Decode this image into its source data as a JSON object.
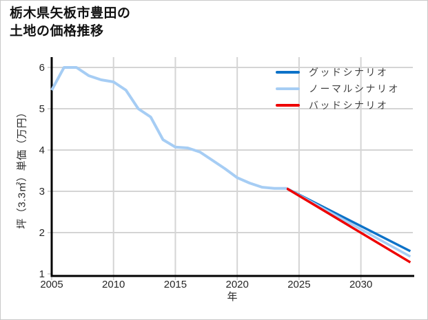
{
  "header": {
    "title_line1": "栃木県矢板市豊田の",
    "title_line2": "土地の価格推移"
  },
  "colors": {
    "good_scenario": "#0d72c8",
    "normal_scenario": "#a6cdf4",
    "bad_scenario": "#ee0000",
    "history_line": "#a6cdf4",
    "gridline": "#d4d4d4",
    "axis": "#000000",
    "tick_mark": "#c9c9c9",
    "tick_label": "#262626"
  },
  "chart_data": {
    "type": "line",
    "title": "栃木県矢板市豊田の土地の価格推移",
    "xlabel": "年",
    "ylabel": "坪（3.3㎡）単価（万円）",
    "x_ticks": [
      2005,
      2010,
      2015,
      2020,
      2025,
      2030
    ],
    "y_ticks": [
      1,
      2,
      3,
      4,
      5,
      6
    ],
    "xlim": [
      2005,
      2034.2
    ],
    "ylim": [
      0.95,
      6.25
    ],
    "grid": true,
    "legend_position": "top-right",
    "series": [
      {
        "name": "good-scenario",
        "label": "グッドシナリオ",
        "color": "#0d72c8",
        "years": [
          2024,
          2034
        ],
        "values": [
          3.07,
          1.55
        ]
      },
      {
        "name": "normal-scenario",
        "label": "ノーマルシナリオ",
        "color": "#a6cdf4",
        "years": [
          2024,
          2034
        ],
        "values": [
          3.07,
          1.42
        ]
      },
      {
        "name": "bad-scenario",
        "label": "バッドシナリオ",
        "color": "#ee0000",
        "years": [
          2024,
          2034
        ],
        "values": [
          3.07,
          1.28
        ]
      },
      {
        "name": "price-history",
        "label": null,
        "color": "#a6cdf4",
        "years": [
          2005,
          2006,
          2007,
          2008,
          2009,
          2010,
          2011,
          2012,
          2013,
          2014,
          2015,
          2016,
          2017,
          2018,
          2019,
          2020,
          2021,
          2022,
          2023,
          2024
        ],
        "values": [
          5.45,
          6.0,
          6.0,
          5.8,
          5.7,
          5.65,
          5.45,
          5.0,
          4.8,
          4.25,
          4.07,
          4.05,
          3.95,
          3.75,
          3.55,
          3.33,
          3.2,
          3.1,
          3.07,
          3.07
        ]
      }
    ],
    "legend": [
      {
        "label": "グッドシナリオ",
        "color": "#0d72c8"
      },
      {
        "label": "ノーマルシナリオ",
        "color": "#a6cdf4"
      },
      {
        "label": "バッドシナリオ",
        "color": "#ee0000"
      }
    ]
  }
}
